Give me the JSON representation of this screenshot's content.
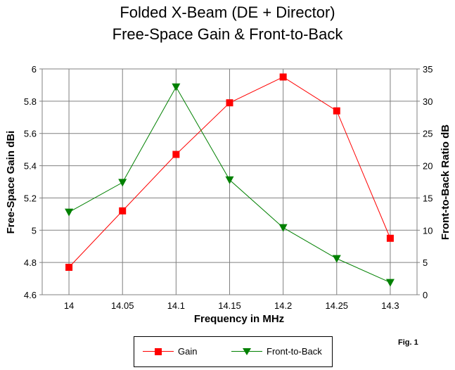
{
  "chart_data": {
    "type": "line",
    "title": "Folded X-Beam (DE + Director)",
    "subtitle": "Free-Space Gain & Front-to-Back",
    "xlabel": "Frequency in MHz",
    "ylabel": "Free-Space Gain dBi",
    "y2label": "Front-to-Back Ratio dB",
    "categories": [
      "14",
      "14.05",
      "14.1",
      "14.15",
      "14.2",
      "14.25",
      "14.3"
    ],
    "ylim": [
      4.6,
      6
    ],
    "y2lim": [
      0,
      35
    ],
    "yticks": [
      "4.6",
      "4.8",
      "5",
      "5.2",
      "5.4",
      "5.6",
      "5.8",
      "6"
    ],
    "y2ticks": [
      "0",
      "5",
      "10",
      "15",
      "20",
      "25",
      "30",
      "35"
    ],
    "grid": true,
    "legend_position": "bottom",
    "series": [
      {
        "name": "Gain",
        "axis": "left",
        "marker": "square",
        "color": "#ff0000",
        "values": [
          4.77,
          5.12,
          5.47,
          5.79,
          5.95,
          5.74,
          4.95
        ]
      },
      {
        "name": "Front-to-Back",
        "axis": "right",
        "marker": "triangle-down",
        "color": "#008000",
        "values": [
          12.8,
          17.4,
          32.2,
          17.8,
          10.4,
          5.6,
          1.9
        ]
      }
    ]
  },
  "annotations": {
    "figure_label": "Fig. 1"
  }
}
